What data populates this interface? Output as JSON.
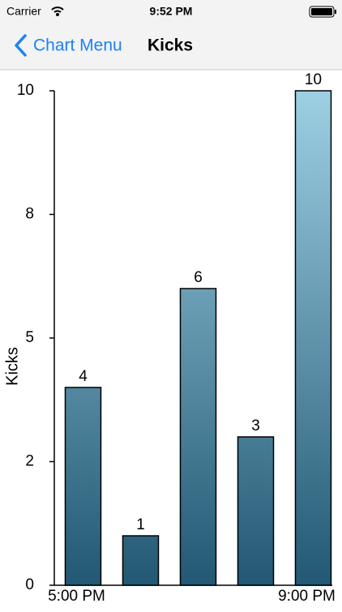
{
  "status_bar": {
    "carrier": "Carrier",
    "time": "9:52 PM"
  },
  "nav_bar": {
    "back": "Chart Menu",
    "title": "Kicks"
  },
  "chart_data": {
    "type": "bar",
    "y_label": "Kicks",
    "categories": [
      "5:00 PM",
      null,
      null,
      null,
      "9:00 PM"
    ],
    "values": [
      4,
      1,
      6,
      3,
      10
    ],
    "ylim": [
      0,
      10
    ],
    "yticks": [
      0,
      {
        "value": 2.5,
        "label": "2"
      },
      5,
      {
        "value": 7.5,
        "label": "8"
      },
      10
    ]
  }
}
